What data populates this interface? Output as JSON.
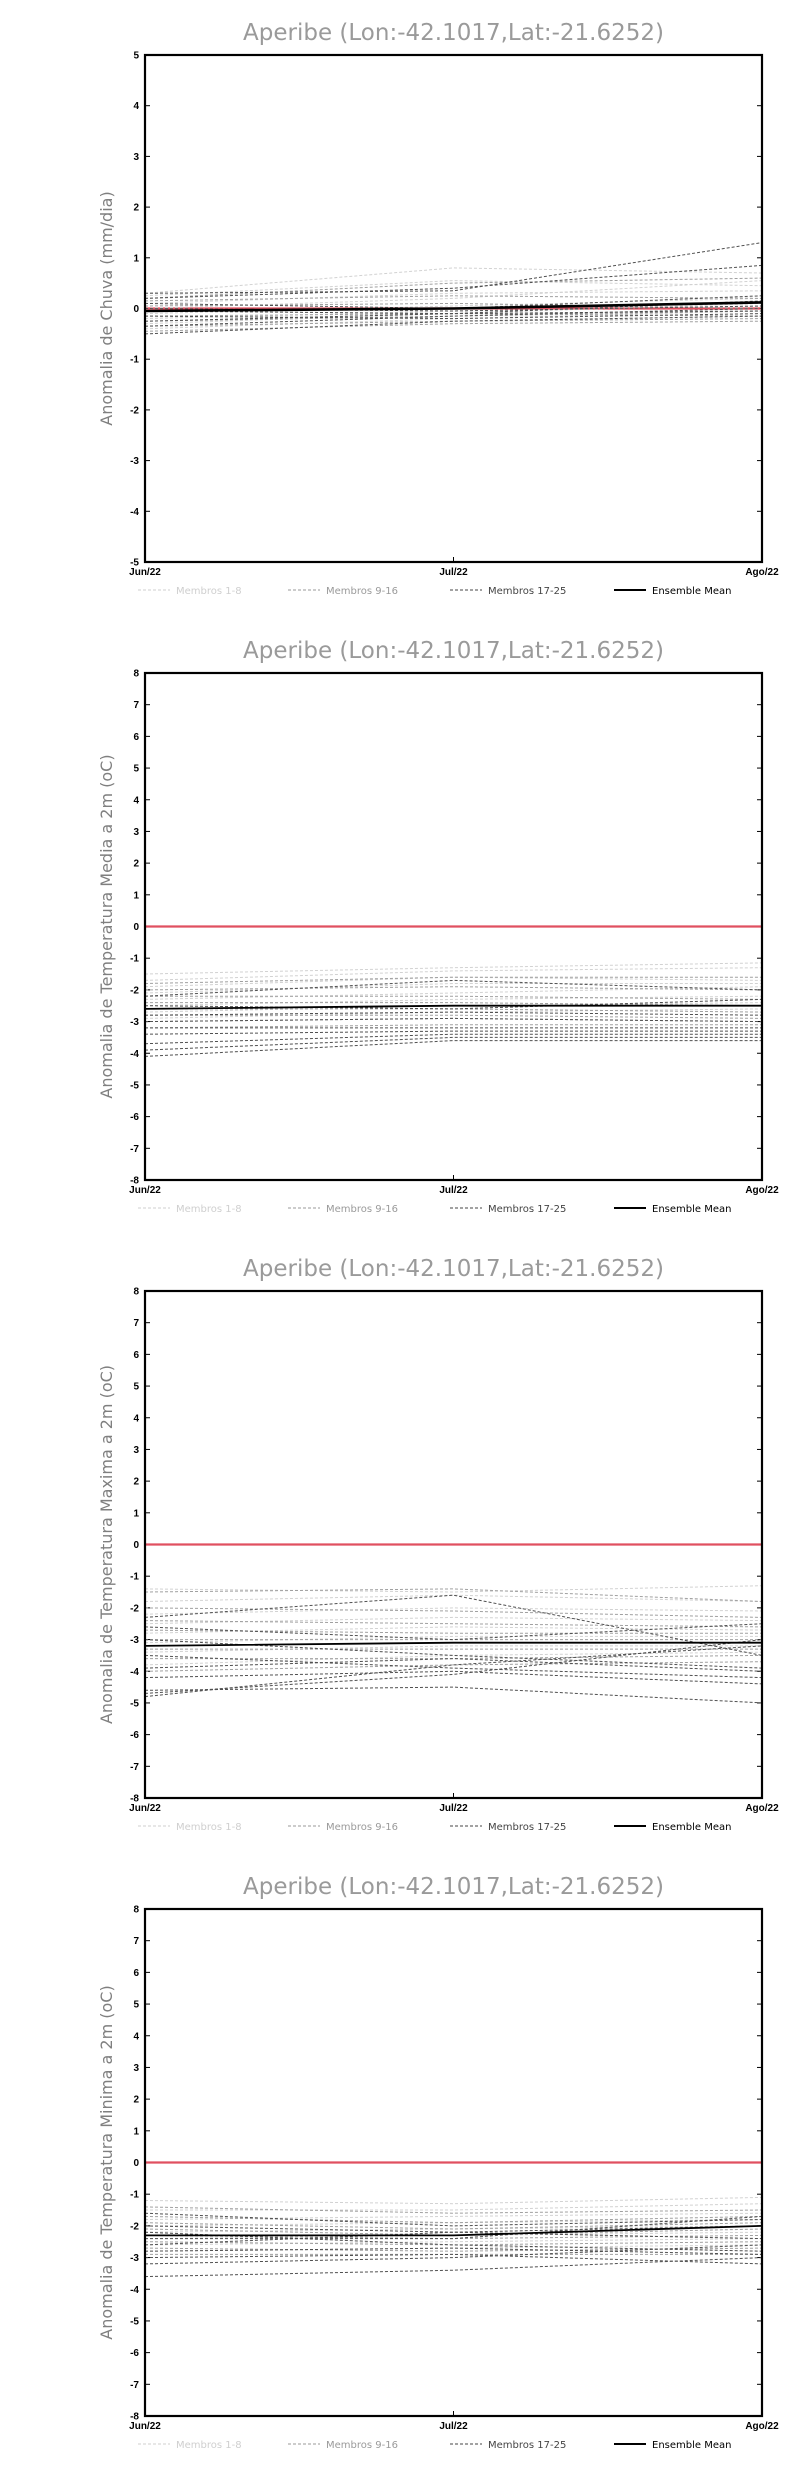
{
  "chart_data": [
    {
      "type": "line",
      "title": "Aperibe (Lon:-42.1017,Lat:-21.6252)",
      "ylabel": "Anomalia de Chuva (mm/dia)",
      "x": [
        "Jun/22",
        "Jul/22",
        "Ago/22"
      ],
      "ylim": [
        -5,
        5
      ],
      "yticks": [
        -5,
        -4,
        -3,
        -2,
        -1,
        0,
        1,
        2,
        3,
        4,
        5
      ],
      "reference_line": 0,
      "legend": [
        "Membros 1-8",
        "Membros 9-16",
        "Membros 17-25",
        "Ensemble Mean"
      ],
      "ensemble_mean": [
        -0.05,
        0.0,
        0.12
      ],
      "members": [
        [
          0.3,
          0.8,
          0.7
        ],
        [
          0.25,
          0.55,
          0.45
        ],
        [
          0.1,
          0.3,
          0.35
        ],
        [
          0.0,
          0.2,
          0.55
        ],
        [
          -0.1,
          0.05,
          0.2
        ],
        [
          -0.2,
          -0.05,
          0.05
        ],
        [
          -0.3,
          -0.1,
          0.1
        ],
        [
          -0.4,
          -0.2,
          -0.05
        ],
        [
          0.2,
          0.5,
          0.6
        ],
        [
          0.15,
          0.25,
          0.2
        ],
        [
          0.05,
          0.1,
          0.0
        ],
        [
          -0.05,
          0.0,
          0.1
        ],
        [
          -0.15,
          -0.1,
          -0.15
        ],
        [
          -0.25,
          -0.15,
          -0.05
        ],
        [
          -0.35,
          -0.25,
          -0.2
        ],
        [
          -0.45,
          -0.3,
          -0.25
        ],
        [
          0.3,
          0.35,
          1.3
        ],
        [
          0.2,
          0.4,
          0.85
        ],
        [
          0.1,
          0.0,
          0.25
        ],
        [
          0.0,
          -0.05,
          0.05
        ],
        [
          -0.05,
          -0.1,
          0.15
        ],
        [
          -0.15,
          -0.2,
          -0.1
        ],
        [
          -0.25,
          -0.1,
          -0.05
        ],
        [
          -0.35,
          -0.15,
          0.0
        ],
        [
          -0.5,
          -0.25,
          -0.15
        ]
      ]
    },
    {
      "type": "line",
      "title": "Aperibe (Lon:-42.1017,Lat:-21.6252)",
      "ylabel": "Anomalia de Temperatura Media a 2m (oC)",
      "x": [
        "Jun/22",
        "Jul/22",
        "Ago/22"
      ],
      "ylim": [
        -8,
        8
      ],
      "yticks": [
        -8,
        -7,
        -6,
        -5,
        -4,
        -3,
        -2,
        -1,
        0,
        1,
        2,
        3,
        4,
        5,
        6,
        7,
        8
      ],
      "reference_line": 0,
      "legend": [
        "Membros 1-8",
        "Membros 9-16",
        "Membros 17-25",
        "Ensemble Mean"
      ],
      "ensemble_mean": [
        -2.6,
        -2.5,
        -2.5
      ],
      "members": [
        [
          -1.5,
          -1.3,
          -1.15
        ],
        [
          -1.7,
          -1.4,
          -1.3
        ],
        [
          -1.9,
          -1.6,
          -1.7
        ],
        [
          -2.1,
          -1.8,
          -1.8
        ],
        [
          -2.3,
          -2.1,
          -1.9
        ],
        [
          -2.5,
          -2.3,
          -2.2
        ],
        [
          -2.7,
          -2.5,
          -2.4
        ],
        [
          -2.9,
          -2.7,
          -2.6
        ],
        [
          -1.8,
          -1.6,
          -1.6
        ],
        [
          -2.0,
          -1.9,
          -2.0
        ],
        [
          -2.2,
          -2.2,
          -2.3
        ],
        [
          -2.4,
          -2.4,
          -2.5
        ],
        [
          -2.6,
          -2.6,
          -2.7
        ],
        [
          -2.8,
          -2.8,
          -2.9
        ],
        [
          -3.0,
          -2.9,
          -3.0
        ],
        [
          -3.2,
          -3.1,
          -3.1
        ],
        [
          -2.2,
          -1.7,
          -2.0
        ],
        [
          -2.5,
          -2.6,
          -2.3
        ],
        [
          -2.8,
          -2.7,
          -2.8
        ],
        [
          -3.0,
          -2.9,
          -3.0
        ],
        [
          -3.2,
          -3.2,
          -3.2
        ],
        [
          -3.4,
          -3.3,
          -3.3
        ],
        [
          -3.7,
          -3.4,
          -3.4
        ],
        [
          -3.9,
          -3.5,
          -3.5
        ],
        [
          -4.1,
          -3.6,
          -3.6
        ]
      ]
    },
    {
      "type": "line",
      "title": "Aperibe (Lon:-42.1017,Lat:-21.6252)",
      "ylabel": "Anomalia de Temperatura Maxima a 2m (oC)",
      "x": [
        "Jun/22",
        "Jul/22",
        "Ago/22"
      ],
      "ylim": [
        -8,
        8
      ],
      "yticks": [
        -8,
        -7,
        -6,
        -5,
        -4,
        -3,
        -2,
        -1,
        0,
        1,
        2,
        3,
        4,
        5,
        6,
        7,
        8
      ],
      "reference_line": 0,
      "legend": [
        "Membros 1-8",
        "Membros 9-16",
        "Membros 17-25",
        "Ensemble Mean"
      ],
      "ensemble_mean": [
        -3.2,
        -3.1,
        -3.1
      ],
      "members": [
        [
          -1.4,
          -1.5,
          -1.3
        ],
        [
          -1.8,
          -1.6,
          -1.8
        ],
        [
          -2.2,
          -2.0,
          -2.1
        ],
        [
          -2.5,
          -2.3,
          -2.4
        ],
        [
          -2.8,
          -2.6,
          -2.7
        ],
        [
          -3.1,
          -2.9,
          -2.9
        ],
        [
          -3.4,
          -3.2,
          -3.2
        ],
        [
          -3.8,
          -3.5,
          -3.4
        ],
        [
          -1.5,
          -1.4,
          -1.8
        ],
        [
          -2.0,
          -2.1,
          -2.3
        ],
        [
          -2.4,
          -2.5,
          -2.6
        ],
        [
          -2.7,
          -2.8,
          -2.8
        ],
        [
          -3.0,
          -3.0,
          -3.0
        ],
        [
          -3.3,
          -3.3,
          -3.3
        ],
        [
          -3.6,
          -3.6,
          -3.5
        ],
        [
          -4.0,
          -3.8,
          -3.7
        ],
        [
          -2.3,
          -1.6,
          -3.5
        ],
        [
          -2.6,
          -3.0,
          -2.5
        ],
        [
          -3.0,
          -3.5,
          -3.9
        ],
        [
          -3.5,
          -3.9,
          -4.2
        ],
        [
          -3.9,
          -3.6,
          -4.0
        ],
        [
          -4.2,
          -4.0,
          -4.4
        ],
        [
          -4.6,
          -4.5,
          -5.0
        ],
        [
          -4.8,
          -3.8,
          -3.2
        ],
        [
          -4.7,
          -4.1,
          -3.0
        ]
      ]
    },
    {
      "type": "line",
      "title": "Aperibe (Lon:-42.1017,Lat:-21.6252)",
      "ylabel": "Anomalia de Temperatura Minima a 2m (oC)",
      "x": [
        "Jun/22",
        "Jul/22",
        "Ago/22"
      ],
      "ylim": [
        -8,
        8
      ],
      "yticks": [
        -8,
        -7,
        -6,
        -5,
        -4,
        -3,
        -2,
        -1,
        0,
        1,
        2,
        3,
        4,
        5,
        6,
        7,
        8
      ],
      "reference_line": 0,
      "legend": [
        "Membros 1-8",
        "Membros 9-16",
        "Membros 17-25",
        "Ensemble Mean"
      ],
      "ensemble_mean": [
        -2.3,
        -2.3,
        -2.0
      ],
      "members": [
        [
          -1.2,
          -1.3,
          -1.1
        ],
        [
          -1.5,
          -1.5,
          -1.3
        ],
        [
          -1.8,
          -1.7,
          -1.6
        ],
        [
          -2.0,
          -1.9,
          -1.8
        ],
        [
          -2.2,
          -2.1,
          -2.0
        ],
        [
          -2.4,
          -2.3,
          -2.2
        ],
        [
          -2.6,
          -2.5,
          -2.4
        ],
        [
          -2.8,
          -2.7,
          -2.6
        ],
        [
          -1.4,
          -1.6,
          -1.5
        ],
        [
          -1.7,
          -1.9,
          -1.7
        ],
        [
          -1.9,
          -2.1,
          -1.9
        ],
        [
          -2.1,
          -2.3,
          -2.1
        ],
        [
          -2.3,
          -2.4,
          -2.3
        ],
        [
          -2.5,
          -2.6,
          -2.5
        ],
        [
          -2.7,
          -2.8,
          -2.7
        ],
        [
          -2.9,
          -2.9,
          -2.9
        ],
        [
          -1.6,
          -2.0,
          -1.8
        ],
        [
          -2.0,
          -2.2,
          -2.4
        ],
        [
          -2.2,
          -2.6,
          -2.8
        ],
        [
          -2.4,
          -2.4,
          -1.7
        ],
        [
          -2.6,
          -2.2,
          -2.0
        ],
        [
          -2.8,
          -2.7,
          -2.9
        ],
        [
          -3.0,
          -2.9,
          -3.2
        ],
        [
          -3.2,
          -3.0,
          -2.6
        ],
        [
          -3.6,
          -3.4,
          -3.0
        ]
      ]
    }
  ]
}
